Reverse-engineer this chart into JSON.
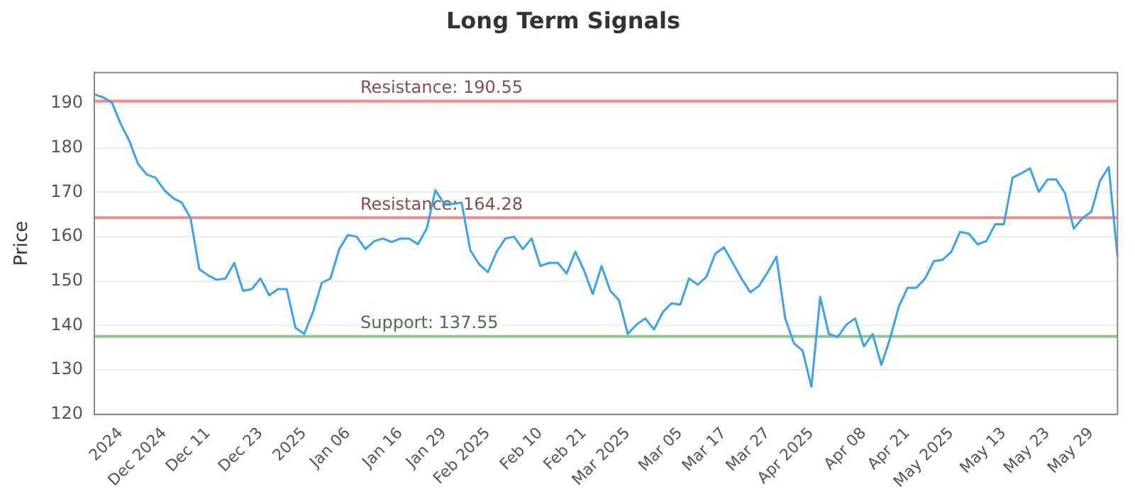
{
  "chart_data": {
    "type": "line",
    "title": "Long Term Signals",
    "ylabel": "Price",
    "categories": [
      null,
      null,
      null,
      "2024",
      null,
      null,
      null,
      null,
      "Dec 2024",
      null,
      null,
      null,
      null,
      "Dec 11",
      null,
      null,
      null,
      null,
      null,
      "Dec 23",
      null,
      null,
      null,
      null,
      "2025",
      null,
      null,
      null,
      null,
      "Jan 06",
      null,
      null,
      null,
      null,
      null,
      "Jan 16",
      null,
      null,
      null,
      null,
      "Jan 29",
      null,
      null,
      null,
      null,
      "Feb 2025",
      null,
      null,
      null,
      null,
      null,
      "Feb 10",
      null,
      null,
      null,
      null,
      "Feb 21",
      null,
      null,
      null,
      null,
      "Mar 2025",
      null,
      null,
      null,
      null,
      null,
      "Mar 05",
      null,
      null,
      null,
      null,
      "Mar 17",
      null,
      null,
      null,
      null,
      "Mar 27",
      null,
      null,
      null,
      null,
      "Apr 2025",
      null,
      null,
      null,
      null,
      null,
      "Apr 08",
      null,
      null,
      null,
      null,
      "Apr 21",
      null,
      null,
      null,
      null,
      "May 2025",
      null,
      null,
      null,
      null,
      null,
      "May 13",
      null,
      null,
      null,
      null,
      "May 23",
      null,
      null,
      null,
      null,
      "May 29",
      null,
      null,
      null
    ],
    "series": [
      {
        "color": "#3ba3ec",
        "values": [
          192.1,
          191.4,
          190.3,
          185.5,
          181.6,
          176.4,
          174,
          173.3,
          170.5,
          168.7,
          167.7,
          164.2,
          152.7,
          151.3,
          150.3,
          150.6,
          154.1,
          147.8,
          148.2,
          150.6,
          146.8,
          148.2,
          148.2,
          139.5,
          138.1,
          143,
          149.6,
          150.6,
          157.2,
          160.4,
          160,
          157.2,
          159,
          159.6,
          158.8,
          159.6,
          159.6,
          158.3,
          161.8,
          170.5,
          167.4,
          167.4,
          167.7,
          156.9,
          153.8,
          152,
          156.6,
          159.6,
          160,
          157.2,
          159.6,
          153.4,
          154.1,
          154.1,
          151.7,
          156.6,
          152.4,
          147.1,
          153.4,
          147.8,
          145.7,
          138.1,
          140.2,
          141.6,
          139.1,
          143,
          145,
          144.7,
          150.6,
          149.2,
          151,
          156.2,
          157.6,
          154.1,
          150.6,
          147.5,
          148.9,
          152,
          155.5,
          141.6,
          136,
          134.3,
          126.2,
          146.4,
          138.1,
          137.4,
          140.2,
          141.6,
          135.3,
          138.1,
          131.1,
          137.1,
          144.3,
          148.5,
          148.5,
          150.6,
          154.5,
          154.8,
          156.6,
          161.1,
          160.7,
          158.3,
          159,
          162.8,
          162.8,
          173.3,
          174.3,
          175.4,
          170.1,
          172.9,
          172.9,
          169.8,
          161.8,
          164.2,
          165.6,
          172.6,
          175.7,
          155.5
        ]
      }
    ],
    "ylim": [
      120,
      197
    ],
    "yticks": [
      120,
      130,
      140,
      150,
      160,
      170,
      180,
      190
    ],
    "grid": "y",
    "legend": false,
    "marker": "none",
    "line_style": "solid",
    "ref_lines": [
      {
        "axis": "y",
        "value": 190.55,
        "label": "Resistance: 190.55",
        "color": "#f08c8c"
      },
      {
        "axis": "y",
        "value": 164.28,
        "label": "Resistance: 164.28",
        "color": "#f08c8c"
      },
      {
        "axis": "y",
        "value": 137.55,
        "label": "Support: 137.55",
        "color": "#8cc88c"
      }
    ]
  }
}
